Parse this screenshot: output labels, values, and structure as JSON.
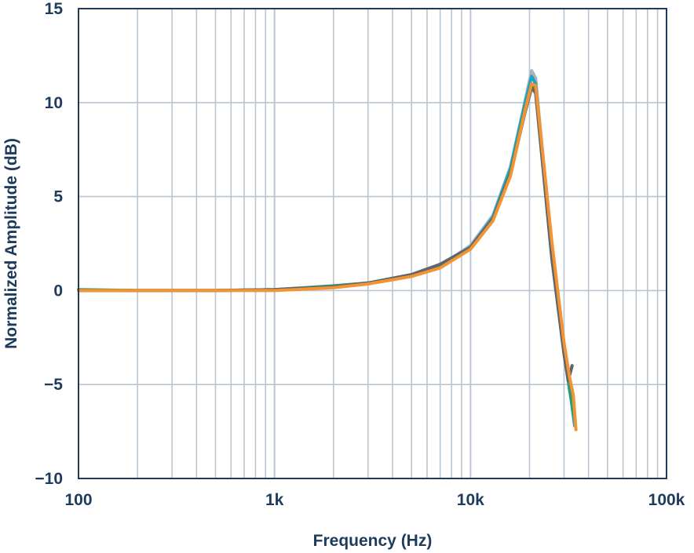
{
  "chart_data": {
    "type": "line",
    "title": "",
    "xlabel": "Frequency (Hz)",
    "ylabel": "Normalized Amplitude (dB)",
    "x_scale": "log",
    "xlim": [
      100,
      100000
    ],
    "ylim": [
      -10,
      15
    ],
    "grid": true,
    "x_ticks": [
      {
        "value": 100,
        "label": "100"
      },
      {
        "value": 1000,
        "label": "1k"
      },
      {
        "value": 10000,
        "label": "10k"
      },
      {
        "value": 100000,
        "label": "100k"
      }
    ],
    "y_ticks": [
      {
        "value": 15,
        "label": "15"
      },
      {
        "value": 10,
        "label": "10"
      },
      {
        "value": 5,
        "label": "5"
      },
      {
        "value": 0,
        "label": "0"
      },
      {
        "value": -5,
        "label": "−5"
      },
      {
        "value": -10,
        "label": "−10"
      }
    ],
    "colors": {
      "axis": "#1f3b5c",
      "grid": "#b9c6d2",
      "text": "#1f3b5c"
    },
    "series": [
      {
        "color": "#aab3bc",
        "x": [
          100,
          200,
          500,
          1000,
          2000,
          3000,
          5000,
          7000,
          10000,
          13000,
          16000,
          19000,
          20500,
          21500,
          23000,
          26000,
          30000,
          32000,
          34000
        ],
        "y": [
          0.0,
          0.0,
          0.0,
          0.05,
          0.2,
          0.4,
          0.8,
          1.3,
          2.4,
          4.0,
          6.6,
          10.1,
          11.7,
          11.3,
          8.0,
          2.2,
          -3.0,
          -5.0,
          -7.0
        ]
      },
      {
        "color": "#1ba3c6",
        "x": [
          100,
          200,
          500,
          1000,
          2000,
          3000,
          5000,
          7000,
          10000,
          13000,
          16000,
          19000,
          20500,
          21500,
          23000,
          26000,
          30000,
          32000,
          34000
        ],
        "y": [
          0.0,
          0.0,
          0.0,
          0.05,
          0.2,
          0.4,
          0.8,
          1.3,
          2.3,
          3.9,
          6.5,
          10.0,
          11.4,
          11.0,
          7.8,
          2.0,
          -3.1,
          -5.2,
          -7.2
        ]
      },
      {
        "color": "#2e9c72",
        "x": [
          100,
          200,
          500,
          1000,
          2000,
          3000,
          5000,
          7000,
          10000,
          13000,
          16000,
          19000,
          20500,
          21500,
          23000,
          26000,
          30000,
          32000,
          34000
        ],
        "y": [
          0.05,
          0.0,
          0.0,
          0.05,
          0.25,
          0.4,
          0.8,
          1.3,
          2.3,
          3.8,
          6.3,
          9.7,
          11.0,
          10.7,
          7.6,
          1.9,
          -3.2,
          -5.3,
          -6.8
        ]
      },
      {
        "color": "#5b6670",
        "x": [
          100,
          200,
          500,
          1000,
          2000,
          3000,
          5000,
          7000,
          10000,
          13000,
          16000,
          19000,
          20500,
          21500,
          23000,
          26000,
          30000,
          31500,
          33000
        ],
        "y": [
          0.0,
          0.0,
          0.0,
          0.05,
          0.2,
          0.4,
          0.85,
          1.4,
          2.3,
          3.8,
          6.2,
          9.5,
          10.8,
          10.5,
          7.4,
          1.7,
          -3.4,
          -4.8,
          -4.0
        ]
      },
      {
        "color": "#f39332",
        "x": [
          100,
          200,
          500,
          1000,
          2000,
          3000,
          5000,
          7000,
          10000,
          13000,
          16000,
          19000,
          20500,
          21500,
          23000,
          26000,
          30000,
          32000,
          33500,
          34500
        ],
        "y": [
          0.0,
          0.0,
          0.0,
          0.0,
          0.15,
          0.35,
          0.75,
          1.2,
          2.2,
          3.7,
          6.1,
          9.6,
          11.0,
          10.9,
          8.0,
          2.6,
          -2.8,
          -4.6,
          -5.6,
          -7.4
        ]
      }
    ]
  }
}
